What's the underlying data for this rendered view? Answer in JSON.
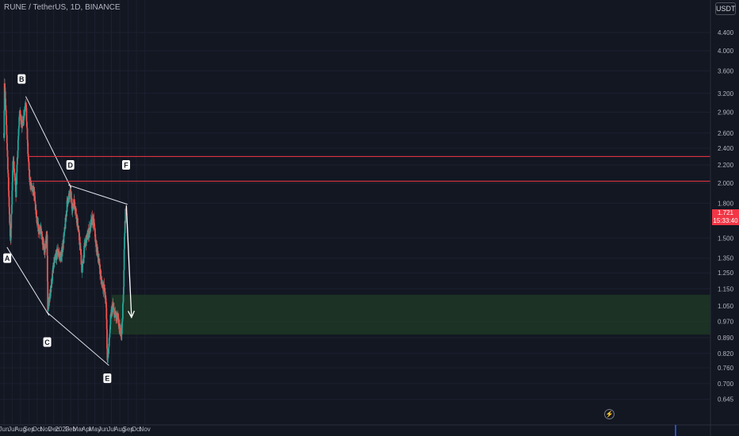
{
  "header": {
    "symbol_title": "RUNE / TetherUS, 1D, BINANCE",
    "currency": "USDT"
  },
  "price_tag": {
    "price": "1.721",
    "countdown": "15:33:40"
  },
  "colors": {
    "background": "#131722",
    "up": "#26a69a",
    "down": "#ef5350",
    "resistance": "#f23645",
    "target_zone": "#1e3a26",
    "trendline": "#e0e3eb",
    "arrow": "#ffffff"
  },
  "icons": {
    "replay": "lightning-icon"
  },
  "chart_data": {
    "type": "candlestick",
    "y_axis": {
      "scale": "log",
      "ticks": [
        "4.400",
        "4.000",
        "3.600",
        "3.200",
        "2.900",
        "2.600",
        "2.400",
        "2.200",
        "2.000",
        "1.800",
        "1.500",
        "1.350",
        "1.250",
        "1.150",
        "1.050",
        "0.970",
        "0.890",
        "0.820",
        "0.760",
        "0.700",
        "0.645"
      ]
    },
    "x_axis": {
      "ticks": [
        "Jun",
        "Jul",
        "Aug",
        "Sep",
        "Oct",
        "Nov",
        "Dec",
        "2023",
        "Feb",
        "Mar",
        "Apr",
        "May",
        "Jun",
        "Jul",
        "Aug",
        "Sep",
        "Oct",
        "Nov"
      ]
    },
    "price_path": [
      {
        "date": "2022-06-01",
        "price": 2.6
      },
      {
        "date": "2022-06-03",
        "price": 3.4
      },
      {
        "date": "2022-06-10",
        "price": 2.7
      },
      {
        "date": "2022-06-25",
        "price": 1.45
      },
      {
        "date": "2022-07-05",
        "price": 2.3
      },
      {
        "date": "2022-07-15",
        "price": 1.9
      },
      {
        "date": "2022-07-28",
        "price": 2.9
      },
      {
        "date": "2022-08-08",
        "price": 2.7
      },
      {
        "date": "2022-08-20",
        "price": 3.1
      },
      {
        "date": "2022-08-28",
        "price": 2.35
      },
      {
        "date": "2022-09-03",
        "price": 2.05
      },
      {
        "date": "2022-09-10",
        "price": 1.95
      },
      {
        "date": "2022-09-20",
        "price": 1.9
      },
      {
        "date": "2022-10-01",
        "price": 1.6
      },
      {
        "date": "2022-10-15",
        "price": 1.55
      },
      {
        "date": "2022-10-30",
        "price": 1.4
      },
      {
        "date": "2022-11-06",
        "price": 1.55
      },
      {
        "date": "2022-11-09",
        "price": 1.02
      },
      {
        "date": "2022-11-20",
        "price": 1.15
      },
      {
        "date": "2022-12-01",
        "price": 1.3
      },
      {
        "date": "2022-12-15",
        "price": 1.4
      },
      {
        "date": "2022-12-28",
        "price": 1.35
      },
      {
        "date": "2023-01-10",
        "price": 1.55
      },
      {
        "date": "2023-01-20",
        "price": 1.82
      },
      {
        "date": "2023-02-01",
        "price": 1.9
      },
      {
        "date": "2023-02-08",
        "price": 1.75
      },
      {
        "date": "2023-02-15",
        "price": 1.82
      },
      {
        "date": "2023-02-25",
        "price": 1.65
      },
      {
        "date": "2023-03-10",
        "price": 1.4
      },
      {
        "date": "2023-03-15",
        "price": 1.25
      },
      {
        "date": "2023-03-25",
        "price": 1.45
      },
      {
        "date": "2023-04-10",
        "price": 1.55
      },
      {
        "date": "2023-04-20",
        "price": 1.65
      },
      {
        "date": "2023-04-28",
        "price": 1.62
      },
      {
        "date": "2023-05-05",
        "price": 1.45
      },
      {
        "date": "2023-05-15",
        "price": 1.35
      },
      {
        "date": "2023-05-25",
        "price": 1.2
      },
      {
        "date": "2023-06-05",
        "price": 1.15
      },
      {
        "date": "2023-06-12",
        "price": 1.05
      },
      {
        "date": "2023-06-16",
        "price": 0.8
      },
      {
        "date": "2023-06-22",
        "price": 0.85
      },
      {
        "date": "2023-06-28",
        "price": 0.98
      },
      {
        "date": "2023-07-05",
        "price": 1.05
      },
      {
        "date": "2023-07-15",
        "price": 1.0
      },
      {
        "date": "2023-07-25",
        "price": 0.98
      },
      {
        "date": "2023-08-01",
        "price": 0.92
      },
      {
        "date": "2023-08-08",
        "price": 0.92
      },
      {
        "date": "2023-08-14",
        "price": 1.1
      },
      {
        "date": "2023-08-18",
        "price": 1.5
      },
      {
        "date": "2023-08-22",
        "price": 1.72
      },
      {
        "date": "2023-08-26",
        "price": 1.721
      }
    ],
    "wave_labels": [
      {
        "label": "A",
        "date": "2022-06-13",
        "price": 1.35
      },
      {
        "label": "B",
        "date": "2022-08-05",
        "price": 3.45
      },
      {
        "label": "C",
        "date": "2022-11-07",
        "price": 0.87
      },
      {
        "label": "D",
        "date": "2023-01-31",
        "price": 2.2
      },
      {
        "label": "E",
        "date": "2023-06-16",
        "price": 0.72
      },
      {
        "label": "F",
        "date": "2023-08-24",
        "price": 2.2
      }
    ],
    "trendlines": [
      {
        "from": {
          "date": "2022-08-20",
          "price": 3.15
        },
        "to": {
          "date": "2023-02-03",
          "price": 1.95
        }
      },
      {
        "from": {
          "date": "2023-01-24",
          "price": 1.98
        },
        "to": {
          "date": "2023-08-29",
          "price": 1.79
        }
      },
      {
        "from": {
          "date": "2022-06-12",
          "price": 1.43
        },
        "to": {
          "date": "2022-11-14",
          "price": 1.0
        }
      },
      {
        "from": {
          "date": "2022-11-04",
          "price": 1.02
        },
        "to": {
          "date": "2023-06-22",
          "price": 0.77
        }
      }
    ],
    "horizontal_levels": [
      {
        "from_date": "2022-08-30",
        "price": 2.3
      },
      {
        "from_date": "2022-08-30",
        "price": 2.02
      }
    ],
    "target_zone": {
      "from_date": "2023-07-01",
      "price_high": 1.115,
      "price_low": 0.905
    },
    "projection_arrow": {
      "from": {
        "date": "2023-08-25",
        "price": 1.78
      },
      "to": {
        "date": "2023-09-13",
        "price": 0.99
      }
    }
  }
}
